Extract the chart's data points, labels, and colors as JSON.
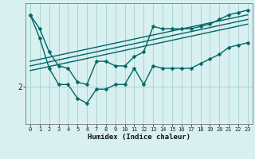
{
  "xlabel": "Humidex (Indice chaleur)",
  "bg_color": "#d8f0f0",
  "line_color": "#006666",
  "grid_color": "#aad4d4",
  "xlim": [
    -0.5,
    23.5
  ],
  "ylim": [
    1.2,
    3.8
  ],
  "ytick_val": 2.0,
  "ytick_label": "2",
  "markersize": 2.5,
  "linewidth": 1.0,
  "series": [
    {
      "x": [
        0,
        1,
        2,
        3,
        4,
        5,
        6,
        7,
        8,
        9,
        10,
        11,
        12,
        13,
        14,
        15,
        16,
        17,
        18,
        19,
        20,
        21,
        22,
        23
      ],
      "y": [
        3.55,
        3.25,
        2.75,
        2.45,
        2.4,
        2.1,
        2.05,
        2.55,
        2.55,
        2.45,
        2.45,
        2.65,
        2.75,
        3.3,
        3.25,
        3.25,
        3.25,
        3.25,
        3.3,
        3.35,
        3.45,
        3.55,
        3.6,
        3.65
      ]
    },
    {
      "x": [
        0,
        1,
        2,
        3,
        4,
        5,
        6,
        7,
        8,
        9,
        10,
        11,
        12,
        13,
        14,
        15,
        16,
        17,
        18,
        19,
        20,
        21,
        22,
        23
      ],
      "y": [
        3.55,
        3.05,
        2.4,
        2.05,
        2.05,
        1.75,
        1.65,
        1.95,
        1.95,
        2.05,
        2.05,
        2.4,
        2.05,
        2.45,
        2.4,
        2.4,
        2.4,
        2.4,
        2.5,
        2.6,
        2.7,
        2.85,
        2.9,
        2.95
      ]
    },
    {
      "x": [
        0,
        23
      ],
      "y": [
        2.55,
        3.55
      ]
    },
    {
      "x": [
        0,
        23
      ],
      "y": [
        2.45,
        3.45
      ]
    },
    {
      "x": [
        0,
        23
      ],
      "y": [
        2.35,
        3.35
      ]
    }
  ]
}
